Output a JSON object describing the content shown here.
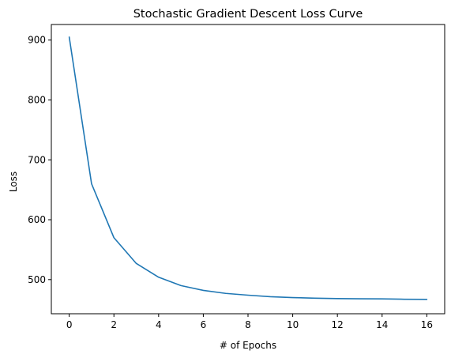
{
  "chart_data": {
    "type": "line",
    "title": "Stochastic Gradient Descent Loss Curve",
    "xlabel": "# of Epochs",
    "ylabel": "Loss",
    "xlim": [
      -0.8,
      16.8
    ],
    "ylim": [
      443,
      926
    ],
    "xticks": [
      0,
      2,
      4,
      6,
      8,
      10,
      12,
      14,
      16
    ],
    "yticks": [
      500,
      600,
      700,
      800,
      900
    ],
    "grid": false,
    "series": [
      {
        "color": "#1f77b4",
        "x": [
          0,
          1,
          2,
          3,
          4,
          5,
          6,
          7,
          8,
          9,
          10,
          11,
          12,
          13,
          14,
          15,
          16
        ],
        "y": [
          905,
          660,
          570,
          527,
          504,
          490,
          482,
          477,
          474,
          471.5,
          470,
          469,
          468.3,
          468,
          467.8,
          467.2,
          467
        ]
      }
    ]
  }
}
